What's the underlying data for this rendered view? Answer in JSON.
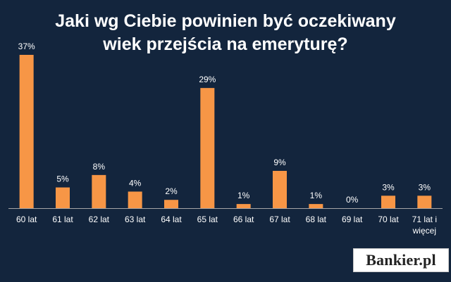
{
  "title": {
    "line1": "Jaki wg Ciebie powinien być oczekiwany",
    "line2": "wiek przejścia na emeryturę?"
  },
  "chart_data": {
    "type": "bar",
    "categories": [
      "60 lat",
      "61 lat",
      "62 lat",
      "63 lat",
      "64 lat",
      "65 lat",
      "66 lat",
      "67 lat",
      "68 lat",
      "69 lat",
      "70 lat",
      "71 lat i\nwięcej"
    ],
    "values": [
      37,
      5,
      8,
      4,
      2,
      29,
      1,
      9,
      1,
      0,
      3,
      3
    ],
    "value_labels": [
      "37%",
      "5%",
      "8%",
      "4%",
      "2%",
      "29%",
      "1%",
      "9%",
      "1%",
      "0%",
      "3%",
      "3%"
    ],
    "title": "Jaki wg Ciebie powinien być oczekiwany wiek przejścia na emeryturę?",
    "ylim": [
      0,
      37
    ],
    "grid": false,
    "legend": "none"
  },
  "colors": {
    "background": "#13253d",
    "bar": "#f79646",
    "text": "#ffffff",
    "axis": "#a6a6a6"
  },
  "logo": {
    "text": "Bankier.pl"
  }
}
